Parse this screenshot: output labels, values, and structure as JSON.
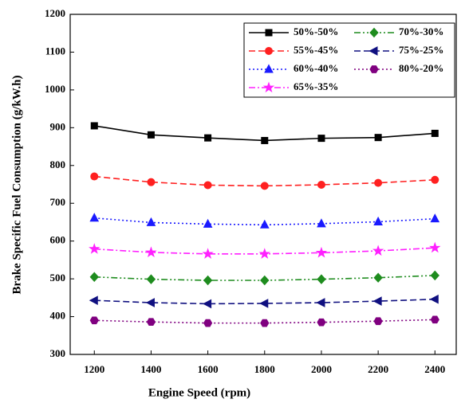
{
  "chart_data": {
    "type": "line",
    "x_label": "Engine Speed (rpm)",
    "y_label": "Brake Specific Fuel Consumption (g/kW.h)",
    "x": [
      1200,
      1400,
      1600,
      1800,
      2000,
      2200,
      2400
    ],
    "xlim": [
      1115,
      2475
    ],
    "xticks": [
      1200,
      1400,
      1600,
      1800,
      2000,
      2200,
      2400
    ],
    "ylim": [
      300,
      1200
    ],
    "yticks": [
      300,
      400,
      500,
      600,
      700,
      800,
      900,
      1000,
      1100,
      1200
    ],
    "legend": "upper right",
    "series": [
      {
        "name": "50%-50%",
        "color": "#000000",
        "marker": "square",
        "linestyle": "solid",
        "values": [
          905,
          881,
          873,
          866,
          872,
          874,
          885
        ]
      },
      {
        "name": "70%-30%",
        "color": "#1e8c1e",
        "marker": "diamond",
        "linestyle": "dashdotdot",
        "values": [
          505,
          499,
          496,
          496,
          499,
          503,
          509
        ]
      },
      {
        "name": "55%-45%",
        "color": "#ff2020",
        "marker": "circle",
        "linestyle": "dashed",
        "values": [
          771,
          756,
          748,
          746,
          749,
          754,
          762
        ]
      },
      {
        "name": "75%-25%",
        "color": "#101080",
        "marker": "triangle-left",
        "linestyle": "dashed",
        "values": [
          443,
          437,
          434,
          435,
          437,
          441,
          446
        ]
      },
      {
        "name": "60%-40%",
        "color": "#1a1aff",
        "marker": "triangle",
        "linestyle": "dotted",
        "values": [
          661,
          649,
          645,
          643,
          646,
          651,
          659
        ]
      },
      {
        "name": "80%-20%",
        "color": "#800080",
        "marker": "hexagon",
        "linestyle": "dotted",
        "values": [
          390,
          386,
          383,
          383,
          385,
          388,
          392
        ]
      },
      {
        "name": "65%-35%",
        "color": "#ff20ff",
        "marker": "star",
        "linestyle": "dashdot",
        "values": [
          579,
          570,
          566,
          566,
          569,
          574,
          582
        ]
      }
    ]
  }
}
